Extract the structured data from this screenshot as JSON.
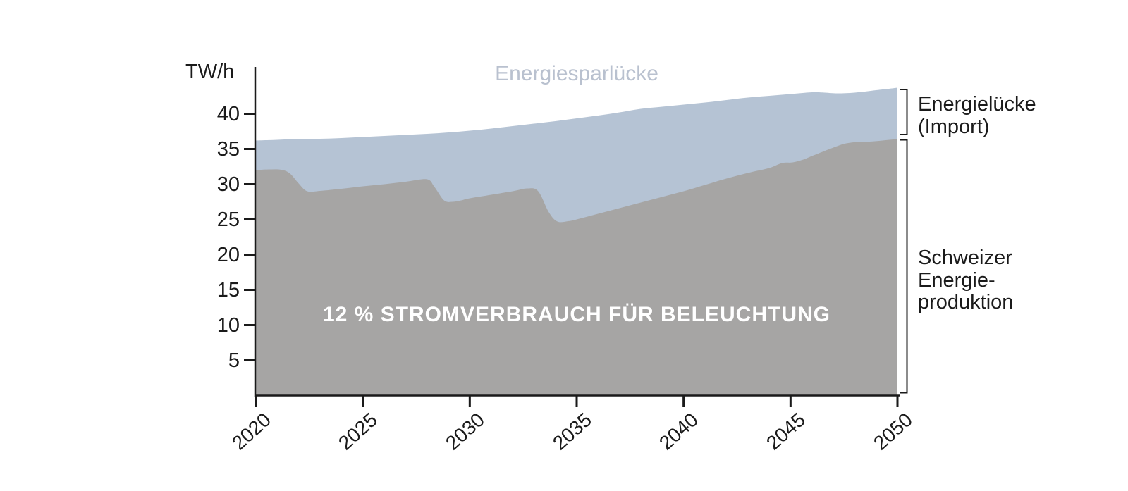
{
  "chart_data": {
    "type": "area",
    "unit": "TW/h",
    "xlim": [
      2020,
      2050
    ],
    "ylim": [
      0,
      45
    ],
    "x_ticks": [
      2020,
      2025,
      2030,
      2035,
      2040,
      2045,
      2050
    ],
    "y_ticks": [
      5,
      10,
      15,
      20,
      25,
      30,
      35,
      40
    ],
    "grid": false,
    "series": [
      {
        "name": "Schweizer Energieproduktion",
        "x": [
          2020,
          2020.6,
          2021.2,
          2021.6,
          2022,
          2022.4,
          2023,
          2024,
          2025,
          2026,
          2027,
          2028,
          2028.35,
          2028.8,
          2029.2,
          2029.6,
          2030,
          2031,
          2032,
          2032.7,
          2033.2,
          2033.7,
          2034.1,
          2034.6,
          2035,
          2036,
          2037,
          2038,
          2039,
          2040,
          2041,
          2042,
          2043,
          2044,
          2044.6,
          2045.1,
          2045.6,
          2046,
          2047,
          2047.6,
          2048.2,
          2048.7,
          2049.3,
          2050
        ],
        "values": [
          32.0,
          32.1,
          32.05,
          31.5,
          30.1,
          29.0,
          29.05,
          29.35,
          29.7,
          30.0,
          30.35,
          30.7,
          29.6,
          27.7,
          27.5,
          27.7,
          28.0,
          28.5,
          29.0,
          29.4,
          29.0,
          26.0,
          24.7,
          24.75,
          25.0,
          25.8,
          26.6,
          27.4,
          28.2,
          29.0,
          29.9,
          30.8,
          31.6,
          32.3,
          33.0,
          33.1,
          33.5,
          34.0,
          35.2,
          35.8,
          36.0,
          36.05,
          36.2,
          36.4
        ]
      },
      {
        "name": "Energiesparlücke",
        "x": [
          2020,
          2021,
          2022,
          2023,
          2024,
          2025,
          2026,
          2027,
          2028,
          2029,
          2030,
          2031,
          2032,
          2033,
          2034,
          2035,
          2036,
          2037,
          2038,
          2039,
          2040,
          2041,
          2042,
          2043,
          2044,
          2045,
          2046,
          2046.6,
          2047.2,
          2048,
          2049,
          2049.6,
          2050
        ],
        "values": [
          36.2,
          36.3,
          36.45,
          36.45,
          36.55,
          36.7,
          36.85,
          37.0,
          37.15,
          37.35,
          37.6,
          37.9,
          38.25,
          38.6,
          38.95,
          39.35,
          39.75,
          40.2,
          40.7,
          41.0,
          41.3,
          41.6,
          41.95,
          42.3,
          42.55,
          42.8,
          43.05,
          43.0,
          42.9,
          43.0,
          43.35,
          43.55,
          43.7
        ]
      }
    ],
    "annotations": {
      "gap": "Energiesparlücke",
      "inside_area": "12 % STROMVERBRAUCH FÜR BELEUCHTUNG",
      "right_top": "Energielücke\n(Import)",
      "right_bottom": "Schweizer\nEnergie-\nproduktion"
    }
  },
  "colors": {
    "production_fill": "#a6a5a4",
    "consumption_fill": "#b5c3d4",
    "gap_label_text": "#b9c1cf",
    "inside_label_text": "#ffffff",
    "axis": "#1a1a1a",
    "text": "#1a1a1a"
  }
}
